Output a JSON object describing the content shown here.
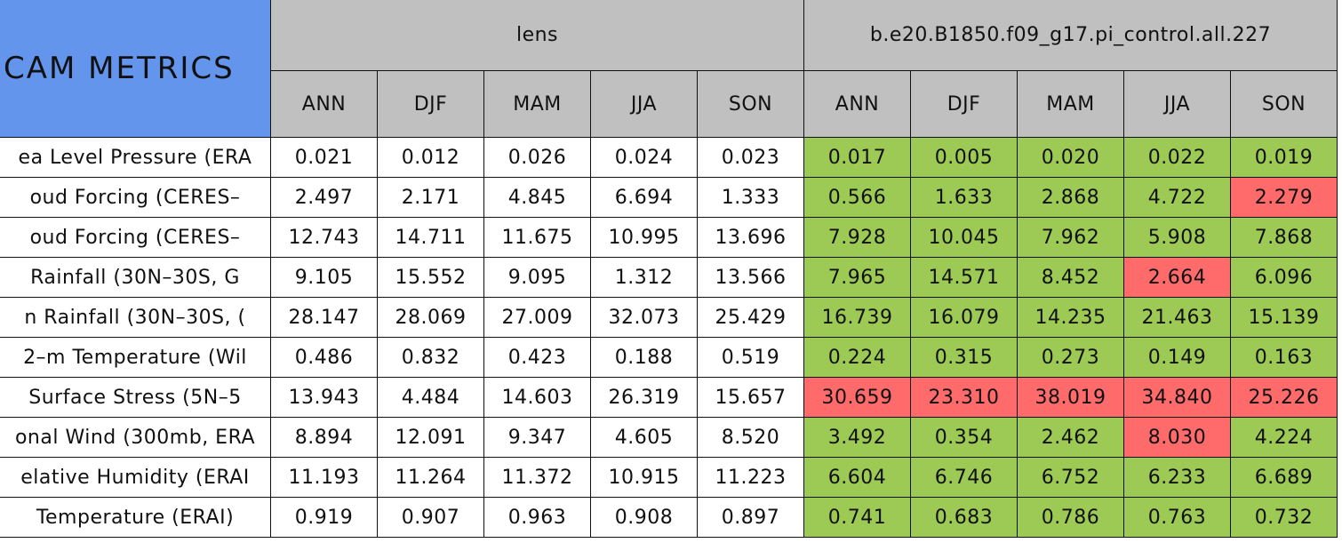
{
  "table": {
    "title": "CAM METRICS",
    "groups": [
      "lens",
      "b.e20.B1850.f09_g17.pi_control.all.227"
    ],
    "header_color": "#c0c0c0",
    "title_color": "#6495ed",
    "seasons": [
      "ANN",
      "DJF",
      "MAM",
      "JJA",
      "SON",
      "ANN",
      "DJF",
      "MAM",
      "JJA",
      "SON"
    ],
    "colors": {
      "good": "#9dca55",
      "bad": "#ff6b6b",
      "plain": "#ffffff"
    },
    "rows": [
      {
        "label": "ea Level Pressure (ERA",
        "values": [
          "0.021",
          "0.012",
          "0.026",
          "0.024",
          "0.023",
          "0.017",
          "0.005",
          "0.020",
          "0.022",
          "0.019"
        ],
        "marks": [
          "plain",
          "plain",
          "plain",
          "plain",
          "plain",
          "good",
          "good",
          "good",
          "good",
          "good"
        ]
      },
      {
        "label": "oud Forcing (CERES–",
        "values": [
          "2.497",
          "2.171",
          "4.845",
          "6.694",
          "1.333",
          "0.566",
          "1.633",
          "2.868",
          "4.722",
          "2.279"
        ],
        "marks": [
          "plain",
          "plain",
          "plain",
          "plain",
          "plain",
          "good",
          "good",
          "good",
          "good",
          "bad"
        ]
      },
      {
        "label": "oud Forcing (CERES–",
        "values": [
          "12.743",
          "14.711",
          "11.675",
          "10.995",
          "13.696",
          "7.928",
          "10.045",
          "7.962",
          "5.908",
          "7.868"
        ],
        "marks": [
          "plain",
          "plain",
          "plain",
          "plain",
          "plain",
          "good",
          "good",
          "good",
          "good",
          "good"
        ]
      },
      {
        "label": "Rainfall (30N–30S, G",
        "values": [
          "9.105",
          "15.552",
          "9.095",
          "1.312",
          "13.566",
          "7.965",
          "14.571",
          "8.452",
          "2.664",
          "6.096"
        ],
        "marks": [
          "plain",
          "plain",
          "plain",
          "plain",
          "plain",
          "good",
          "good",
          "good",
          "bad",
          "good"
        ]
      },
      {
        "label": "n Rainfall (30N–30S, (",
        "values": [
          "28.147",
          "28.069",
          "27.009",
          "32.073",
          "25.429",
          "16.739",
          "16.079",
          "14.235",
          "21.463",
          "15.139"
        ],
        "marks": [
          "plain",
          "plain",
          "plain",
          "plain",
          "plain",
          "good",
          "good",
          "good",
          "good",
          "good"
        ]
      },
      {
        "label": "2–m Temperature (Wil",
        "values": [
          "0.486",
          "0.832",
          "0.423",
          "0.188",
          "0.519",
          "0.224",
          "0.315",
          "0.273",
          "0.149",
          "0.163"
        ],
        "marks": [
          "plain",
          "plain",
          "plain",
          "plain",
          "plain",
          "good",
          "good",
          "good",
          "good",
          "good"
        ]
      },
      {
        "label": "Surface Stress (5N–5",
        "values": [
          "13.943",
          "4.484",
          "14.603",
          "26.319",
          "15.657",
          "30.659",
          "23.310",
          "38.019",
          "34.840",
          "25.226"
        ],
        "marks": [
          "plain",
          "plain",
          "plain",
          "plain",
          "plain",
          "bad",
          "bad",
          "bad",
          "bad",
          "bad"
        ]
      },
      {
        "label": "onal Wind (300mb, ERA",
        "values": [
          "8.894",
          "12.091",
          "9.347",
          "4.605",
          "8.520",
          "3.492",
          "0.354",
          "2.462",
          "8.030",
          "4.224"
        ],
        "marks": [
          "plain",
          "plain",
          "plain",
          "plain",
          "plain",
          "good",
          "good",
          "good",
          "bad",
          "good"
        ]
      },
      {
        "label": "elative Humidity (ERAI",
        "values": [
          "11.193",
          "11.264",
          "11.372",
          "10.915",
          "11.223",
          "6.604",
          "6.746",
          "6.752",
          "6.233",
          "6.689"
        ],
        "marks": [
          "plain",
          "plain",
          "plain",
          "plain",
          "plain",
          "good",
          "good",
          "good",
          "good",
          "good"
        ]
      },
      {
        "label": "Temperature (ERAI)",
        "values": [
          "0.919",
          "0.907",
          "0.963",
          "0.908",
          "0.897",
          "0.741",
          "0.683",
          "0.786",
          "0.763",
          "0.732"
        ],
        "marks": [
          "plain",
          "plain",
          "plain",
          "plain",
          "plain",
          "good",
          "good",
          "good",
          "good",
          "good"
        ]
      }
    ]
  }
}
